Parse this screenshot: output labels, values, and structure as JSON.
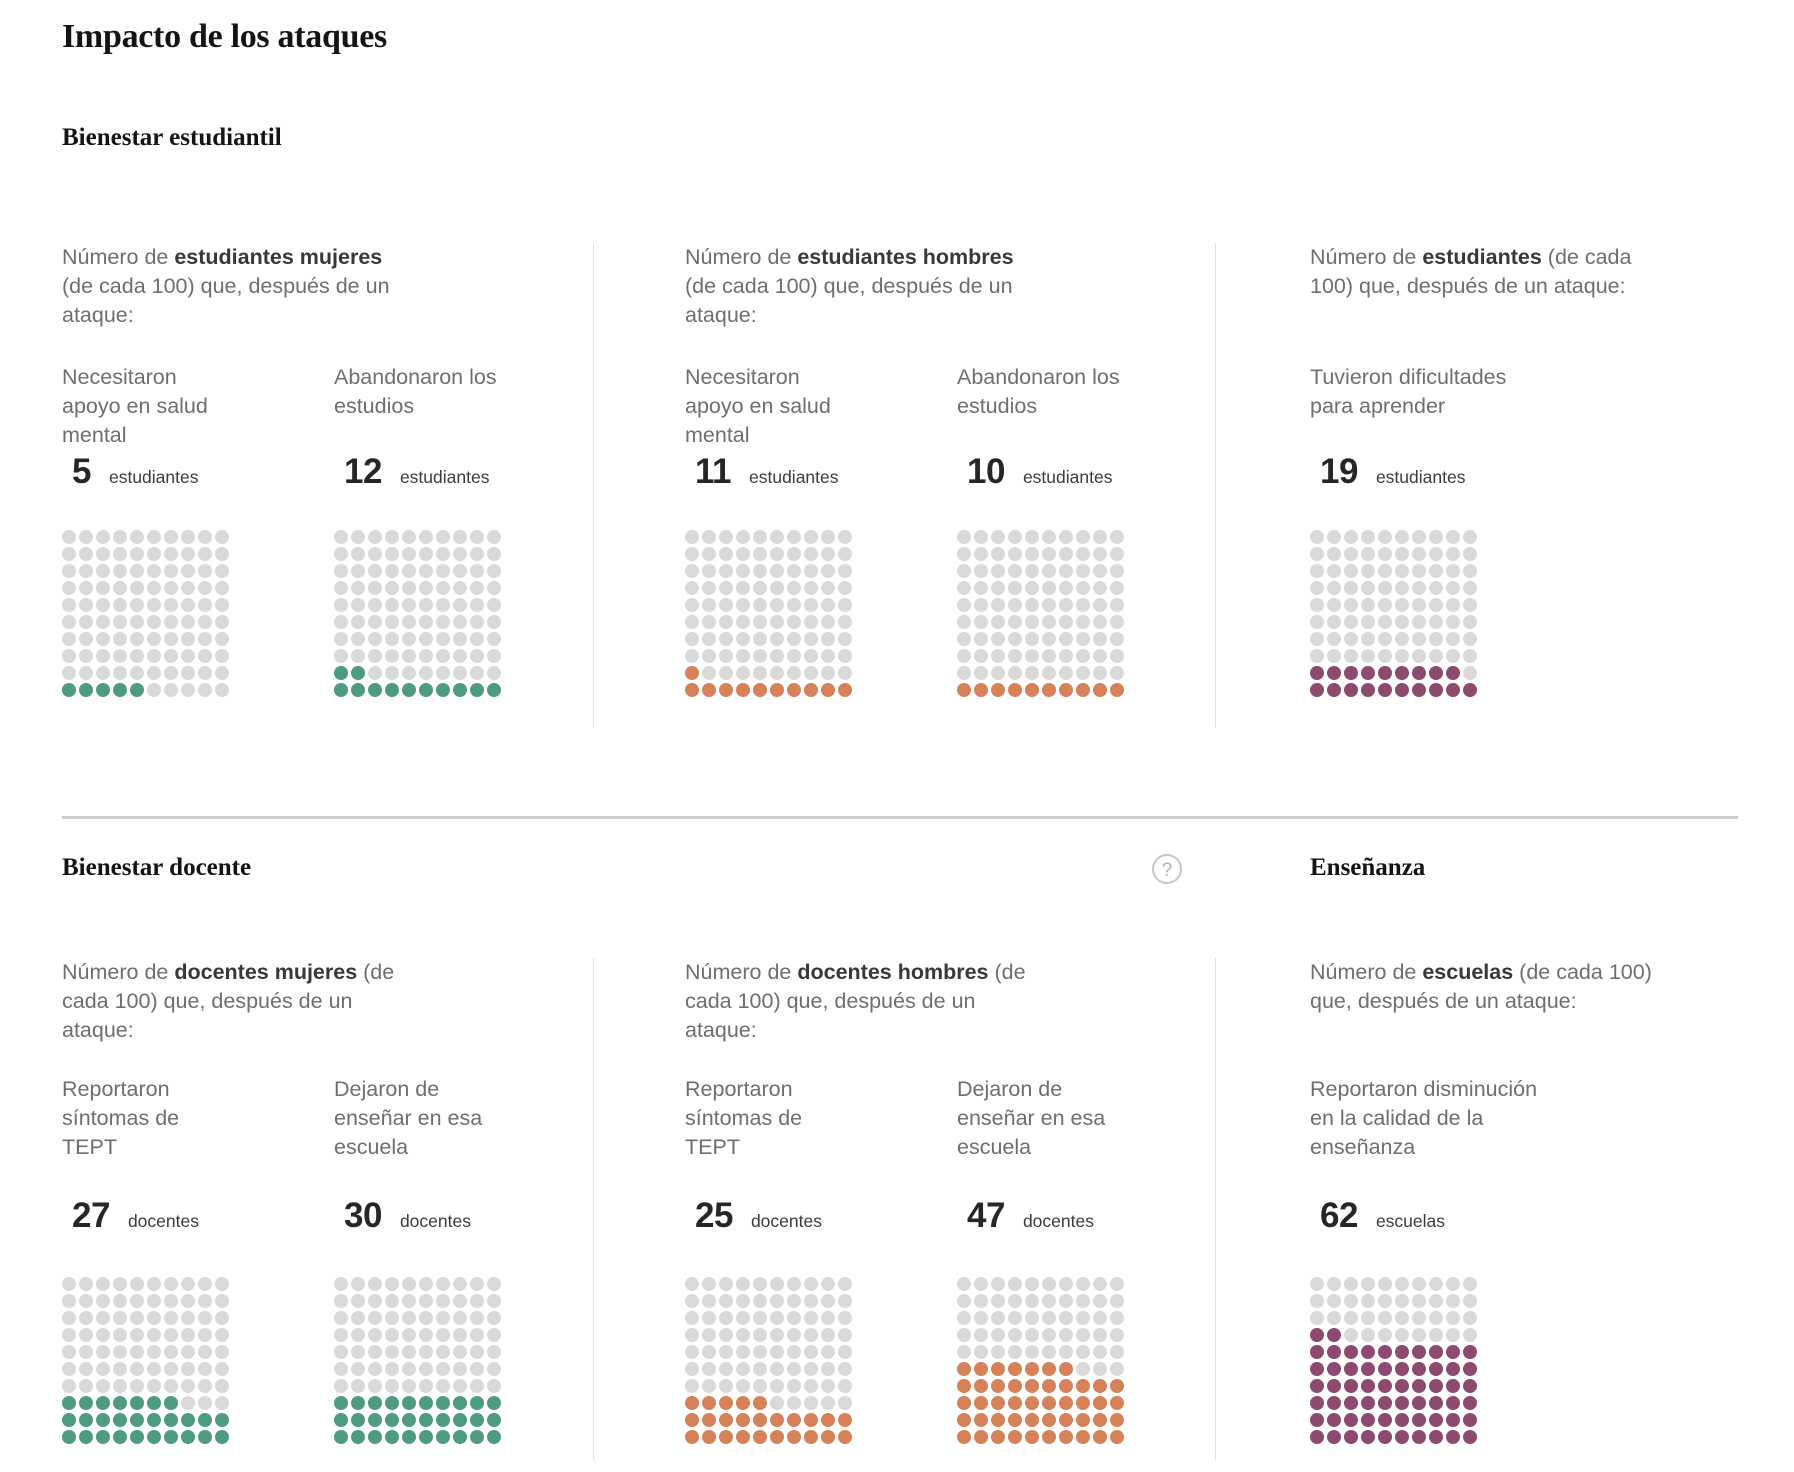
{
  "title": "Impacto de los ataques",
  "palette": {
    "dot_gray": "#d9d9d9",
    "green": "#4f9b80",
    "orange": "#d6815a",
    "purple": "#8c4a6e",
    "divider": "#e0e0e0",
    "rule": "#cccccc"
  },
  "help_icon": {
    "glyph": "?"
  },
  "sections": [
    {
      "heading": "Bienestar estudiantil",
      "columns": [
        {
          "intro": {
            "prefix": "Número de ",
            "bold": "estudiantes mujeres",
            "suffix": "\n(de cada 100) que, después de un\nataque:"
          },
          "charts": [
            {
              "label": "Necesitaron\napoyo en salud\nmental",
              "value": 5,
              "unit": "estudiantes",
              "color": "#4f9b80"
            },
            {
              "label": "Abandonaron los\nestudios",
              "value": 12,
              "unit": "estudiantes",
              "color": "#4f9b80"
            }
          ]
        },
        {
          "intro": {
            "prefix": "Número de ",
            "bold": "estudiantes hombres",
            "suffix": "\n(de cada 100) que, después de un\nataque:"
          },
          "charts": [
            {
              "label": "Necesitaron\napoyo en salud\nmental",
              "value": 11,
              "unit": "estudiantes",
              "color": "#d6815a"
            },
            {
              "label": "Abandonaron los\nestudios",
              "value": 10,
              "unit": "estudiantes",
              "color": "#d6815a"
            }
          ]
        },
        {
          "intro": {
            "prefix": "Número de ",
            "bold": "estudiantes",
            "suffix": " (de cada\n100) que, después de un ataque:"
          },
          "charts": [
            {
              "label": "Tuvieron dificultades\npara aprender",
              "value": 19,
              "unit": "estudiantes",
              "color": "#8c4a6e"
            }
          ]
        }
      ]
    },
    {
      "heading": "Bienestar docente",
      "heading_right": "Enseñanza",
      "columns": [
        {
          "intro": {
            "prefix": "Número de ",
            "bold": "docentes mujeres",
            "suffix": " (de\ncada 100) que, después de un\nataque:"
          },
          "charts": [
            {
              "label": "Reportaron\nsíntomas de\nTEPT",
              "value": 27,
              "unit": "docentes",
              "color": "#4f9b80"
            },
            {
              "label": "Dejaron de\nenseñar en esa\nescuela",
              "value": 30,
              "unit": "docentes",
              "color": "#4f9b80"
            }
          ]
        },
        {
          "intro": {
            "prefix": "Número de ",
            "bold": "docentes hombres",
            "suffix": " (de\ncada 100) que, después de un\nataque:"
          },
          "charts": [
            {
              "label": "Reportaron\nsíntomas de\nTEPT",
              "value": 25,
              "unit": "docentes",
              "color": "#d6815a"
            },
            {
              "label": "Dejaron de\nenseñar en esa\nescuela",
              "value": 47,
              "unit": "docentes",
              "color": "#d6815a"
            }
          ]
        },
        {
          "intro": {
            "prefix": "Número de ",
            "bold": "escuelas",
            "suffix": " (de cada 100)\nque, después de un ataque:"
          },
          "charts": [
            {
              "label": "Reportaron disminución\nen la calidad de la\nenseñanza",
              "value": 62,
              "unit": "escuelas",
              "color": "#8c4a6e"
            }
          ]
        }
      ]
    }
  ],
  "chart_data": {
    "type": "waffle",
    "grid": [
      10,
      10
    ],
    "total_per_chart": 100,
    "fill_direction": "bottom-left, row by row upward",
    "title": "Impacto de los ataques",
    "items": [
      {
        "section": "Bienestar estudiantil",
        "group": "estudiantes mujeres",
        "measure": "Necesitaron apoyo en salud mental",
        "value": 5,
        "unit": "estudiantes",
        "color": "#4f9b80"
      },
      {
        "section": "Bienestar estudiantil",
        "group": "estudiantes mujeres",
        "measure": "Abandonaron los estudios",
        "value": 12,
        "unit": "estudiantes",
        "color": "#4f9b80"
      },
      {
        "section": "Bienestar estudiantil",
        "group": "estudiantes hombres",
        "measure": "Necesitaron apoyo en salud mental",
        "value": 11,
        "unit": "estudiantes",
        "color": "#d6815a"
      },
      {
        "section": "Bienestar estudiantil",
        "group": "estudiantes hombres",
        "measure": "Abandonaron los estudios",
        "value": 10,
        "unit": "estudiantes",
        "color": "#d6815a"
      },
      {
        "section": "Bienestar estudiantil",
        "group": "estudiantes",
        "measure": "Tuvieron dificultades para aprender",
        "value": 19,
        "unit": "estudiantes",
        "color": "#8c4a6e"
      },
      {
        "section": "Bienestar docente",
        "group": "docentes mujeres",
        "measure": "Reportaron síntomas de TEPT",
        "value": 27,
        "unit": "docentes",
        "color": "#4f9b80"
      },
      {
        "section": "Bienestar docente",
        "group": "docentes mujeres",
        "measure": "Dejaron de enseñar en esa escuela",
        "value": 30,
        "unit": "docentes",
        "color": "#4f9b80"
      },
      {
        "section": "Bienestar docente",
        "group": "docentes hombres",
        "measure": "Reportaron síntomas de TEPT",
        "value": 25,
        "unit": "docentes",
        "color": "#d6815a"
      },
      {
        "section": "Bienestar docente",
        "group": "docentes hombres",
        "measure": "Dejaron de enseñar en esa escuela",
        "value": 47,
        "unit": "docentes",
        "color": "#d6815a"
      },
      {
        "section": "Enseñanza",
        "group": "escuelas",
        "measure": "Reportaron disminución en la calidad de la enseñanza",
        "value": 62,
        "unit": "escuelas",
        "color": "#8c4a6e"
      }
    ]
  }
}
